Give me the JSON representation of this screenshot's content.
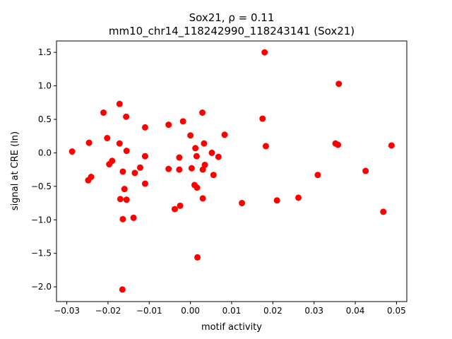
{
  "chart_data": {
    "type": "scatter",
    "title_line1": "Sox21, ρ = 0.11",
    "title_line2": "mm10_chr14_118242990_118243141 (Sox21)",
    "xlabel": "motif activity",
    "ylabel": "signal at CRE (ln)",
    "xlim": [
      -0.0325,
      0.0525
    ],
    "ylim": [
      -2.22,
      1.67
    ],
    "x_ticks": [
      -0.03,
      -0.02,
      -0.01,
      0.0,
      0.01,
      0.02,
      0.03,
      0.04,
      0.05
    ],
    "x_tick_labels": [
      "−0.03",
      "−0.02",
      "−0.01",
      "0.00",
      "0.01",
      "0.02",
      "0.03",
      "0.04",
      "0.05"
    ],
    "y_ticks": [
      -2.0,
      -1.5,
      -1.0,
      -0.5,
      0.0,
      0.5,
      1.0,
      1.5
    ],
    "y_tick_labels": [
      "−2.0",
      "−1.5",
      "−1.0",
      "−0.5",
      "0.0",
      "0.5",
      "1.0",
      "1.5"
    ],
    "grid": false,
    "marker_color": "#ff0000",
    "points": [
      {
        "x": -0.0287,
        "y": 0.02
      },
      {
        "x": -0.0248,
        "y": -0.41
      },
      {
        "x": -0.0246,
        "y": 0.15
      },
      {
        "x": -0.0241,
        "y": -0.36
      },
      {
        "x": -0.0211,
        "y": 0.6
      },
      {
        "x": -0.0202,
        "y": 0.22
      },
      {
        "x": -0.0197,
        "y": -0.17
      },
      {
        "x": -0.019,
        "y": -0.12
      },
      {
        "x": -0.0172,
        "y": 0.73
      },
      {
        "x": -0.0172,
        "y": 0.14
      },
      {
        "x": -0.017,
        "y": -0.69
      },
      {
        "x": -0.0165,
        "y": -2.04
      },
      {
        "x": -0.0164,
        "y": -0.28
      },
      {
        "x": -0.0164,
        "y": -0.99
      },
      {
        "x": -0.016,
        "y": -0.54
      },
      {
        "x": -0.0156,
        "y": 0.54
      },
      {
        "x": -0.0155,
        "y": 0.03
      },
      {
        "x": -0.0155,
        "y": -0.7
      },
      {
        "x": -0.0138,
        "y": -0.97
      },
      {
        "x": -0.0135,
        "y": -0.3
      },
      {
        "x": -0.0122,
        "y": -0.22
      },
      {
        "x": -0.011,
        "y": 0.38
      },
      {
        "x": -0.011,
        "y": -0.05
      },
      {
        "x": -0.011,
        "y": -0.46
      },
      {
        "x": -0.0053,
        "y": 0.42
      },
      {
        "x": -0.0053,
        "y": -0.24
      },
      {
        "x": -0.0038,
        "y": -0.84
      },
      {
        "x": -0.0027,
        "y": -0.07
      },
      {
        "x": -0.0027,
        "y": -0.25
      },
      {
        "x": -0.0025,
        "y": -0.79
      },
      {
        "x": -0.0018,
        "y": 0.47
      },
      {
        "x": 0.0,
        "y": 0.26
      },
      {
        "x": 0.0003,
        "y": -0.23
      },
      {
        "x": 0.001,
        "y": -0.48
      },
      {
        "x": 0.0012,
        "y": 0.07
      },
      {
        "x": 0.0015,
        "y": -0.05
      },
      {
        "x": 0.0016,
        "y": -0.52
      },
      {
        "x": 0.0017,
        "y": -1.56
      },
      {
        "x": 0.0029,
        "y": 0.6
      },
      {
        "x": 0.003,
        "y": -0.25
      },
      {
        "x": 0.003,
        "y": -0.68
      },
      {
        "x": 0.0033,
        "y": 0.14
      },
      {
        "x": 0.0035,
        "y": -0.18
      },
      {
        "x": 0.0052,
        "y": 0.0
      },
      {
        "x": 0.0056,
        "y": -0.33
      },
      {
        "x": 0.0068,
        "y": -0.06
      },
      {
        "x": 0.0083,
        "y": 0.27
      },
      {
        "x": 0.0125,
        "y": -0.75
      },
      {
        "x": 0.0175,
        "y": 0.51
      },
      {
        "x": 0.018,
        "y": 1.5
      },
      {
        "x": 0.0183,
        "y": 0.1
      },
      {
        "x": 0.021,
        "y": -0.71
      },
      {
        "x": 0.0262,
        "y": -0.67
      },
      {
        "x": 0.0309,
        "y": -0.33
      },
      {
        "x": 0.0352,
        "y": 0.14
      },
      {
        "x": 0.0358,
        "y": 0.12
      },
      {
        "x": 0.036,
        "y": 1.03
      },
      {
        "x": 0.0425,
        "y": -0.27
      },
      {
        "x": 0.0468,
        "y": -0.88
      },
      {
        "x": 0.0488,
        "y": 0.11
      }
    ]
  }
}
